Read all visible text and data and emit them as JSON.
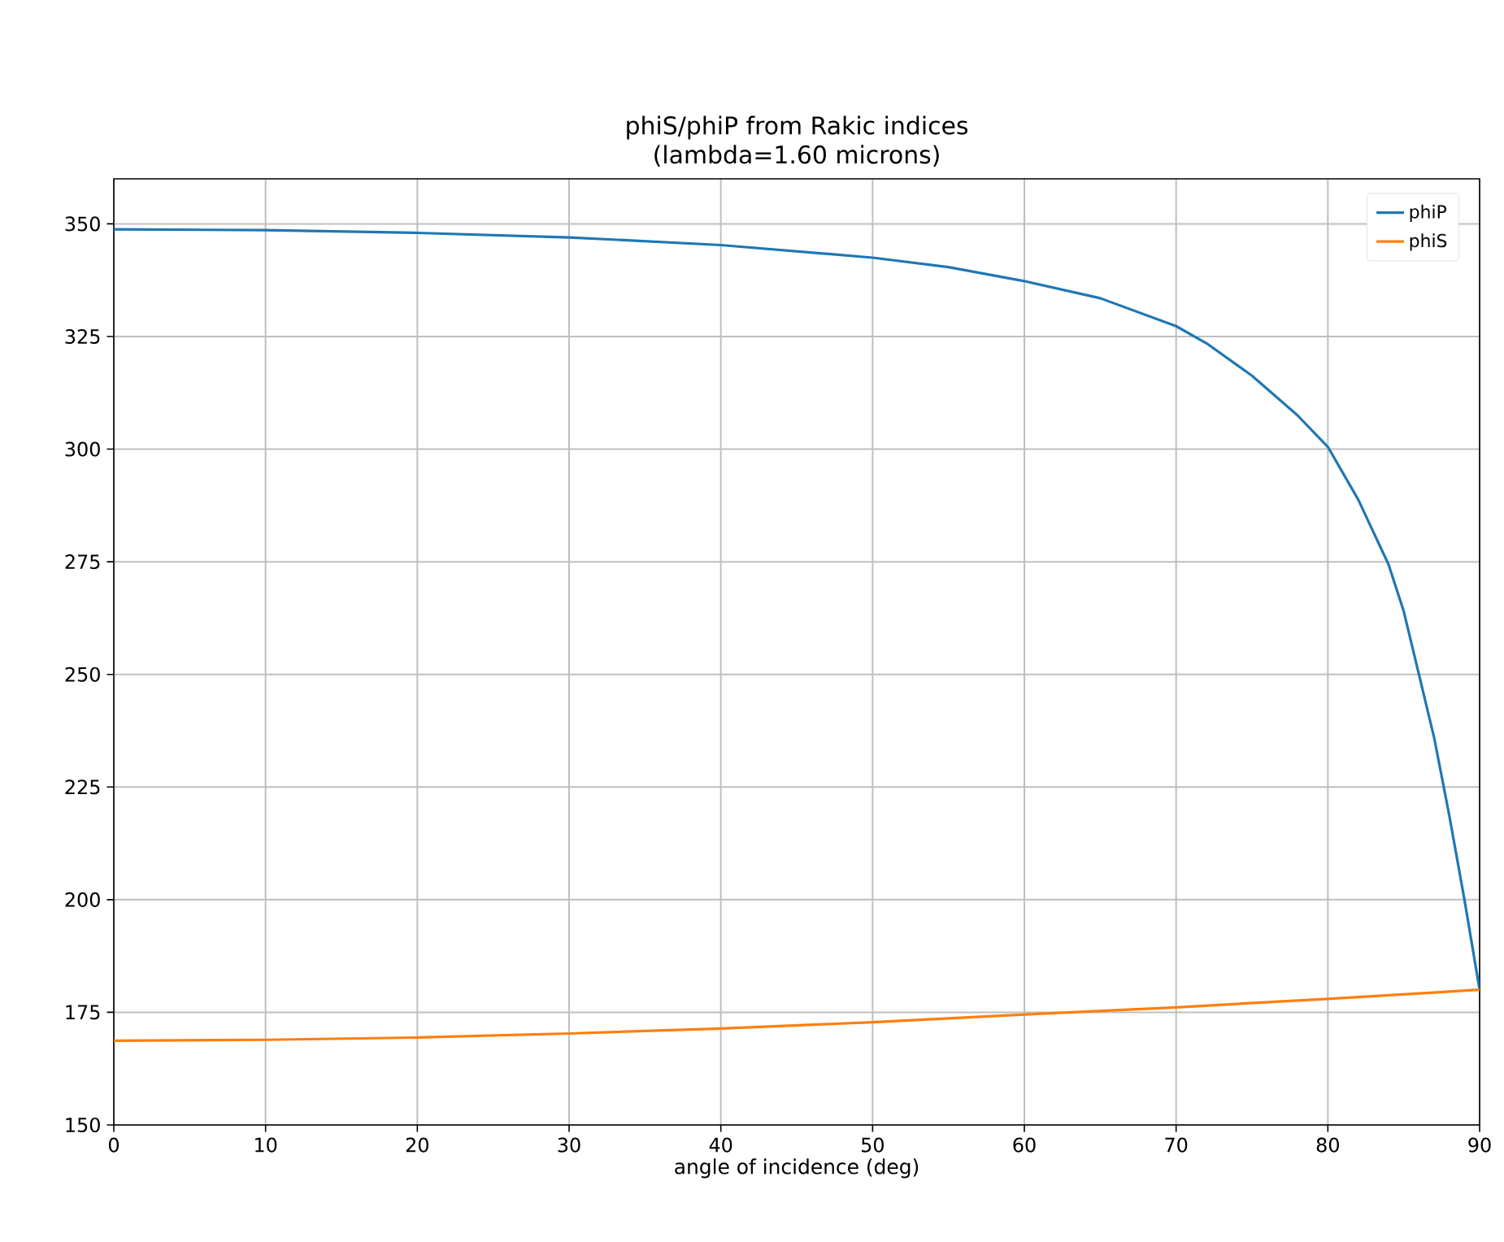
{
  "chart_data": {
    "type": "line",
    "title": "phiS/phiP from Rakic indices\n(lambda=1.60 microns)",
    "xlabel": "angle of incidence (deg)",
    "x": [
      0,
      10,
      20,
      30,
      40,
      50,
      55,
      60,
      65,
      70,
      72,
      75,
      78,
      80,
      82,
      84,
      85,
      86,
      87,
      88,
      89,
      90
    ],
    "series": [
      {
        "name": "phiP",
        "color": "#1f77b4",
        "values": [
          348.8,
          348.6,
          348.0,
          347.0,
          345.3,
          342.5,
          340.4,
          337.3,
          333.5,
          327.3,
          323.5,
          316.3,
          307.5,
          300.5,
          288.8,
          274.4,
          264,
          250,
          236,
          218.7,
          200,
          180
        ]
      },
      {
        "name": "phiS",
        "color": "#ff7f0e",
        "x": [
          0,
          10,
          20,
          30,
          40,
          50,
          60,
          70,
          80,
          90
        ],
        "values": [
          168.7,
          168.9,
          169.4,
          170.3,
          171.4,
          172.8,
          174.5,
          176.1,
          178.0,
          180.0
        ]
      }
    ],
    "xlim": [
      0,
      90
    ],
    "ylim": [
      150,
      360
    ],
    "xticks": [
      0,
      10,
      20,
      30,
      40,
      50,
      60,
      70,
      80,
      90
    ],
    "yticks": [
      150,
      175,
      200,
      225,
      250,
      275,
      300,
      325,
      350
    ],
    "grid": true,
    "legend": "top right",
    "marker": "none",
    "line_style": "solid"
  }
}
